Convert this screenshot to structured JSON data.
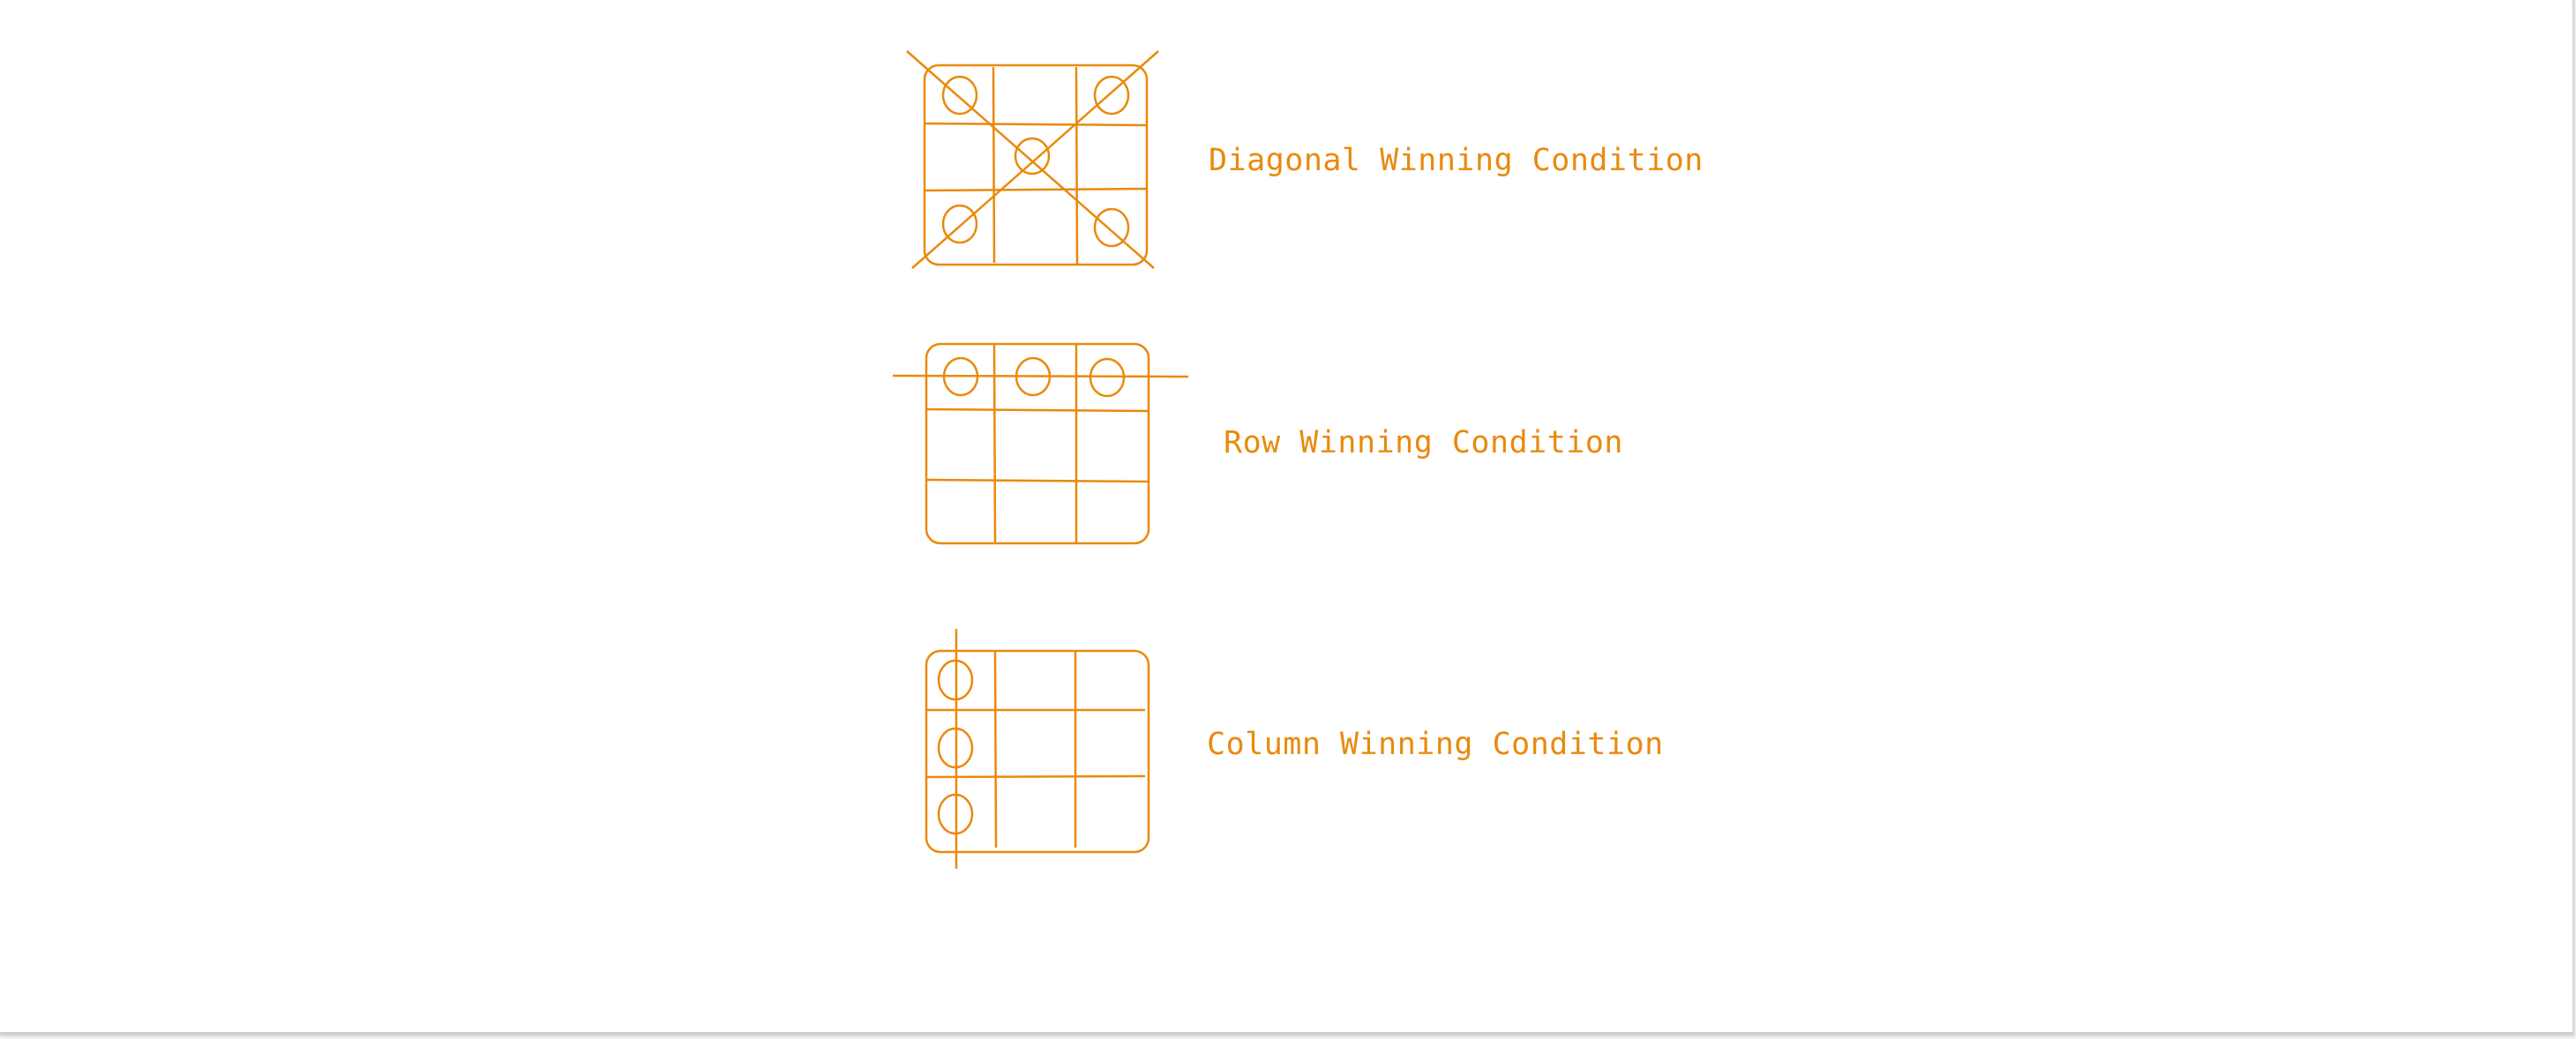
{
  "stroke_color": "#e98a0c",
  "diagrams": [
    {
      "id": "diagonal",
      "label": "Diagonal Winning Condition",
      "marks": [
        "circle",
        "",
        "circle",
        "",
        "circle",
        "",
        "circle",
        "",
        "circle"
      ],
      "strike": "diagonals"
    },
    {
      "id": "row",
      "label": "Row Winning Condition",
      "marks": [
        "circle",
        "circle",
        "circle",
        "",
        "",
        "",
        "",
        "",
        ""
      ],
      "strike": "top-row"
    },
    {
      "id": "column",
      "label": "Column Winning Condition",
      "marks": [
        "circle",
        "",
        "",
        "circle",
        "",
        "",
        "circle",
        "",
        ""
      ],
      "strike": "left-column"
    }
  ]
}
